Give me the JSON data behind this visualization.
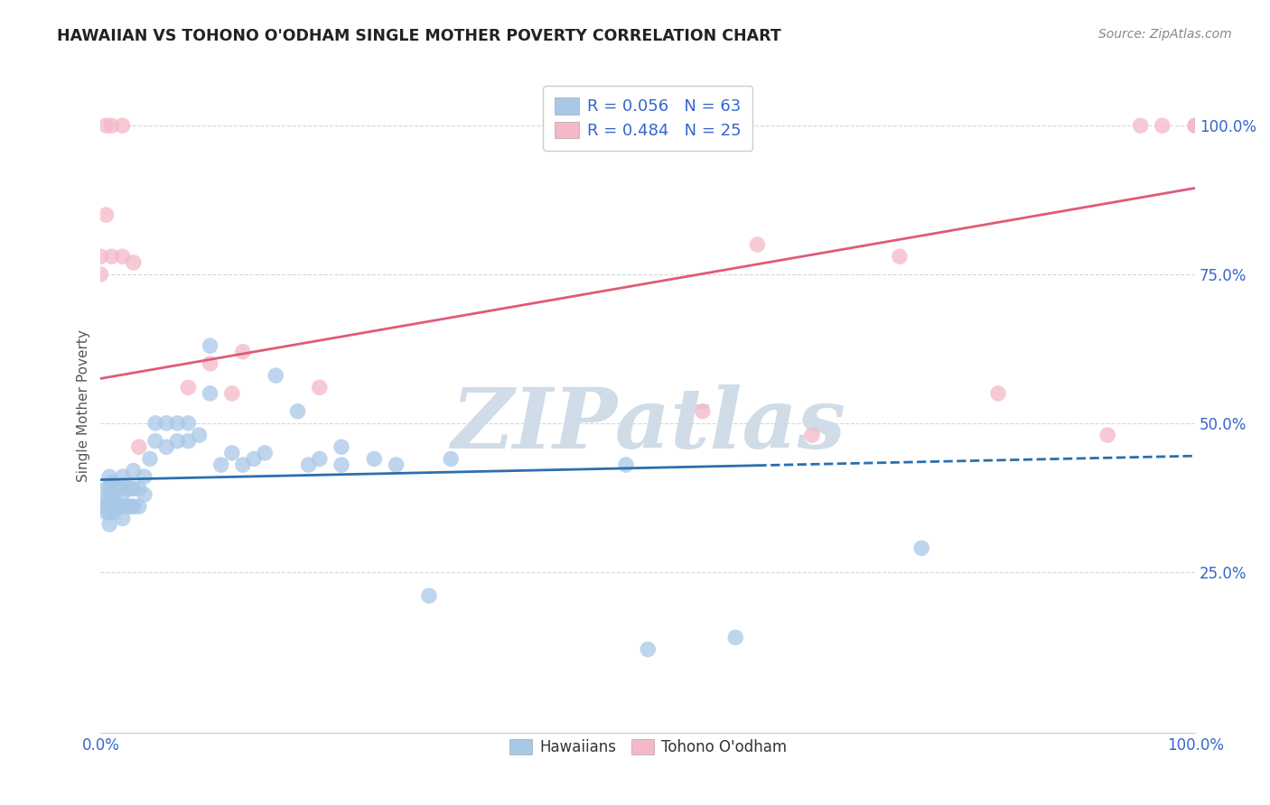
{
  "title": "HAWAIIAN VS TOHONO O'ODHAM SINGLE MOTHER POVERTY CORRELATION CHART",
  "source": "Source: ZipAtlas.com",
  "ylabel": "Single Mother Poverty",
  "xlim": [
    0.0,
    1.0
  ],
  "ylim": [
    -0.02,
    1.08
  ],
  "blue_line_color": "#2c6fad",
  "pink_line_color": "#e05a78",
  "blue_scatter_color": "#a8c8e8",
  "pink_scatter_color": "#f4b8c8",
  "background_color": "#ffffff",
  "grid_color": "#d8d8d8",
  "watermark": "ZIPatlas",
  "watermark_color": "#d0dce8",
  "title_color": "#222222",
  "source_color": "#888888",
  "tick_color": "#3366cc",
  "ylabel_color": "#555555",
  "hawaiians_x": [
    0.0,
    0.005,
    0.005,
    0.005,
    0.008,
    0.008,
    0.008,
    0.008,
    0.008,
    0.01,
    0.01,
    0.01,
    0.012,
    0.012,
    0.015,
    0.015,
    0.017,
    0.017,
    0.02,
    0.02,
    0.02,
    0.02,
    0.025,
    0.025,
    0.028,
    0.028,
    0.03,
    0.03,
    0.03,
    0.035,
    0.035,
    0.04,
    0.04,
    0.045,
    0.05,
    0.05,
    0.06,
    0.06,
    0.07,
    0.07,
    0.08,
    0.08,
    0.09,
    0.1,
    0.1,
    0.11,
    0.12,
    0.13,
    0.14,
    0.15,
    0.16,
    0.18,
    0.19,
    0.2,
    0.22,
    0.22,
    0.25,
    0.27,
    0.3,
    0.32,
    0.48,
    0.5,
    0.58,
    0.75
  ],
  "hawaiians_y": [
    0.36,
    0.35,
    0.37,
    0.39,
    0.33,
    0.35,
    0.37,
    0.39,
    0.41,
    0.36,
    0.38,
    0.4,
    0.35,
    0.38,
    0.36,
    0.39,
    0.36,
    0.39,
    0.34,
    0.36,
    0.38,
    0.41,
    0.36,
    0.39,
    0.36,
    0.39,
    0.36,
    0.39,
    0.42,
    0.36,
    0.39,
    0.38,
    0.41,
    0.44,
    0.47,
    0.5,
    0.46,
    0.5,
    0.47,
    0.5,
    0.47,
    0.5,
    0.48,
    0.55,
    0.63,
    0.43,
    0.45,
    0.43,
    0.44,
    0.45,
    0.58,
    0.52,
    0.43,
    0.44,
    0.43,
    0.46,
    0.44,
    0.43,
    0.21,
    0.44,
    0.43,
    0.12,
    0.14,
    0.29
  ],
  "tohono_x": [
    0.0,
    0.0,
    0.005,
    0.005,
    0.01,
    0.01,
    0.02,
    0.02,
    0.03,
    0.035,
    0.08,
    0.1,
    0.12,
    0.13,
    0.2,
    0.55,
    0.6,
    0.65,
    0.73,
    0.82,
    0.92,
    0.95,
    0.97,
    1.0,
    1.0
  ],
  "tohono_y": [
    0.75,
    0.78,
    0.85,
    1.0,
    0.78,
    1.0,
    0.78,
    1.0,
    0.77,
    0.46,
    0.56,
    0.6,
    0.55,
    0.62,
    0.56,
    0.52,
    0.8,
    0.48,
    0.78,
    0.55,
    0.48,
    1.0,
    1.0,
    1.0,
    1.0
  ],
  "blue_line_x0": 0.0,
  "blue_line_x_split": 0.6,
  "blue_line_x1": 1.0,
  "blue_line_y_at_0": 0.405,
  "blue_line_slope": 0.04,
  "pink_line_y_at_0": 0.575,
  "pink_line_slope": 0.32
}
